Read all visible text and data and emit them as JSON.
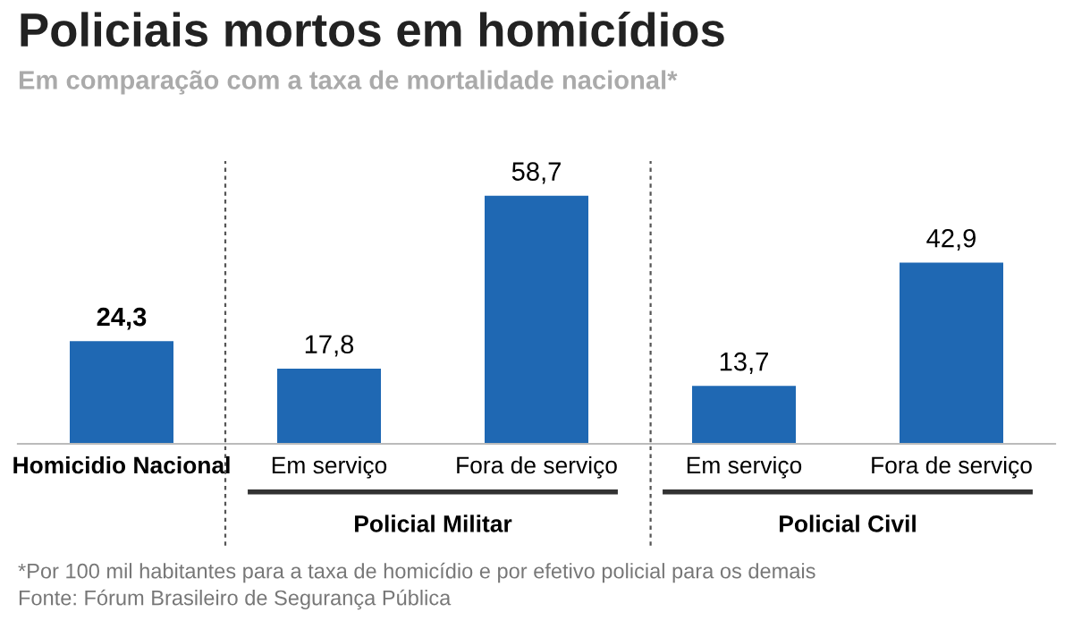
{
  "chart_data": {
    "type": "bar",
    "title": "Policiais mortos em homicídios",
    "subtitle": "Em comparação com a taxa de mortalidade nacional*",
    "categories": [
      "Homicidio Nacional",
      "Em serviço",
      "Fora de serviço",
      "Em serviço",
      "Fora de serviço"
    ],
    "values": [
      24.3,
      17.8,
      58.7,
      13.7,
      42.9
    ],
    "value_labels": [
      "24,3",
      "17,8",
      "58,7",
      "13,7",
      "42,9"
    ],
    "color": "#1f68b3",
    "annotations": [
      "Policial Militar",
      "Policial Civil",
      "*Por 100 mil habitantes para a taxa de homicídio e por efetivo policial para os demais",
      "Fonte: Fórum Brasileiro de Segurança Pública"
    ],
    "grid": false,
    "legend": false
  }
}
